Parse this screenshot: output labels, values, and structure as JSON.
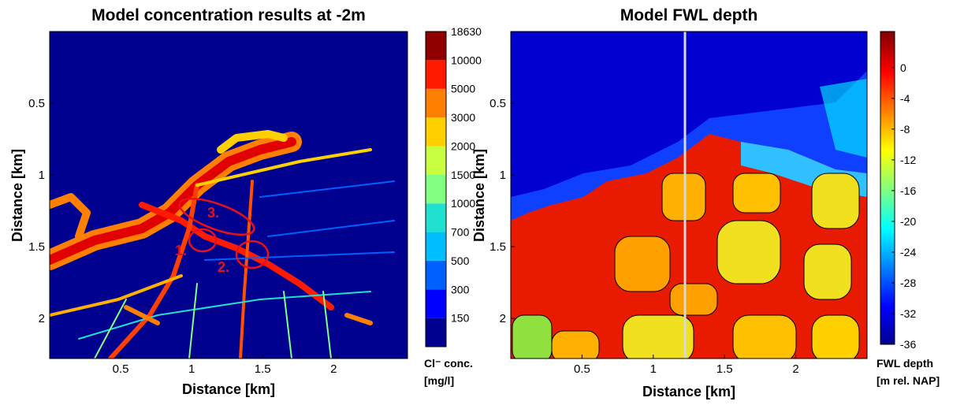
{
  "chart_data": [
    {
      "type": "heatmap",
      "title": "Model concentration results at -2m",
      "xlabel": "Distance [km]",
      "ylabel": "Distance [km]",
      "xlim": [
        0,
        2.52
      ],
      "ylim": [
        0,
        2.28
      ],
      "xticks": [
        0.5,
        1,
        1.5,
        2
      ],
      "yticks": [
        0.5,
        1,
        1.5,
        2
      ],
      "annotations": [
        "1.",
        "2.",
        "3."
      ],
      "colorbar": {
        "levels": [
          150,
          300,
          500,
          700,
          1000,
          1500,
          2000,
          3000,
          5000,
          10000,
          18630
        ],
        "colors": [
          "#00008f",
          "#0000ff",
          "#0060ff",
          "#00bfff",
          "#20e0d0",
          "#80ff80",
          "#c8ff40",
          "#ffd000",
          "#ff8000",
          "#ff1a00",
          "#900000"
        ],
        "label": [
          "Cl⁻ conc.",
          "[mg/l]"
        ]
      }
    },
    {
      "type": "heatmap",
      "title": "Model FWL depth",
      "xlabel": "Distance [km]",
      "ylabel": "Distance [km]",
      "xlim": [
        0,
        2.5
      ],
      "ylim": [
        0,
        2.28
      ],
      "xticks": [
        0.5,
        1,
        1.5,
        2
      ],
      "yticks": [
        0.5,
        1,
        1.5,
        2
      ],
      "colorbar": {
        "lim": [
          -36,
          4.7
        ],
        "ticks": [
          0,
          -4,
          -8,
          -12,
          -16,
          -20,
          -24,
          -28,
          -32,
          -36
        ],
        "label": [
          "FWL depth",
          "[m rel. NAP]"
        ]
      }
    }
  ]
}
